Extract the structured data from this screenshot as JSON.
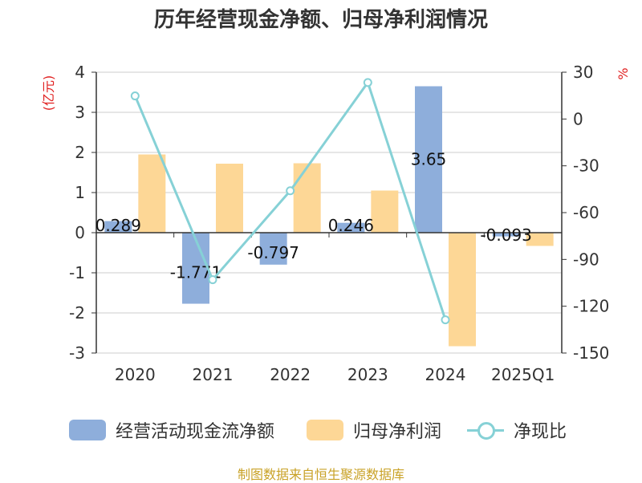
{
  "chart_data": {
    "type": "bar",
    "title": "历年经营现金净额、归母净利润情况",
    "categories": [
      "2020",
      "2021",
      "2022",
      "2023",
      "2024",
      "2025Q1"
    ],
    "ylabel_left": "(亿元)",
    "ylabel_right": "%",
    "ylim_left": [
      -3,
      4
    ],
    "ylim_right": [
      -150,
      30
    ],
    "yticks_left": [
      "4",
      "3",
      "2",
      "1",
      "0",
      "-1",
      "-2",
      "-3"
    ],
    "yticks_right": [
      "30",
      "0",
      "-30",
      "-60",
      "-90",
      "-120",
      "-150"
    ],
    "series": [
      {
        "name": "经营活动现金流净额",
        "axis": "left",
        "kind": "bar",
        "color": "#8eaedb",
        "values": [
          0.289,
          -1.771,
          -0.797,
          0.246,
          3.65,
          -0.093
        ],
        "labels": [
          "0.289",
          "-1.771",
          "-0.797",
          "0.246",
          "3.65",
          "-0.093"
        ]
      },
      {
        "name": "归母净利润",
        "axis": "left",
        "kind": "bar",
        "color": "#fdd796",
        "values": [
          1.95,
          1.72,
          1.73,
          1.05,
          -2.83,
          -0.33
        ]
      },
      {
        "name": "净现比",
        "axis": "right",
        "kind": "line",
        "color": "#86d1d6",
        "values": [
          14.8,
          -103.0,
          -46.0,
          23.4,
          -128.7,
          null
        ]
      }
    ]
  },
  "legend": {
    "items": [
      {
        "label": "经营活动现金流净额",
        "color": "#8eaedb"
      },
      {
        "label": "归母净利润",
        "color": "#fdd796"
      },
      {
        "label": "净现比",
        "color": "#86d1d6"
      }
    ]
  },
  "source": "制图数据来自恒生聚源数据库"
}
